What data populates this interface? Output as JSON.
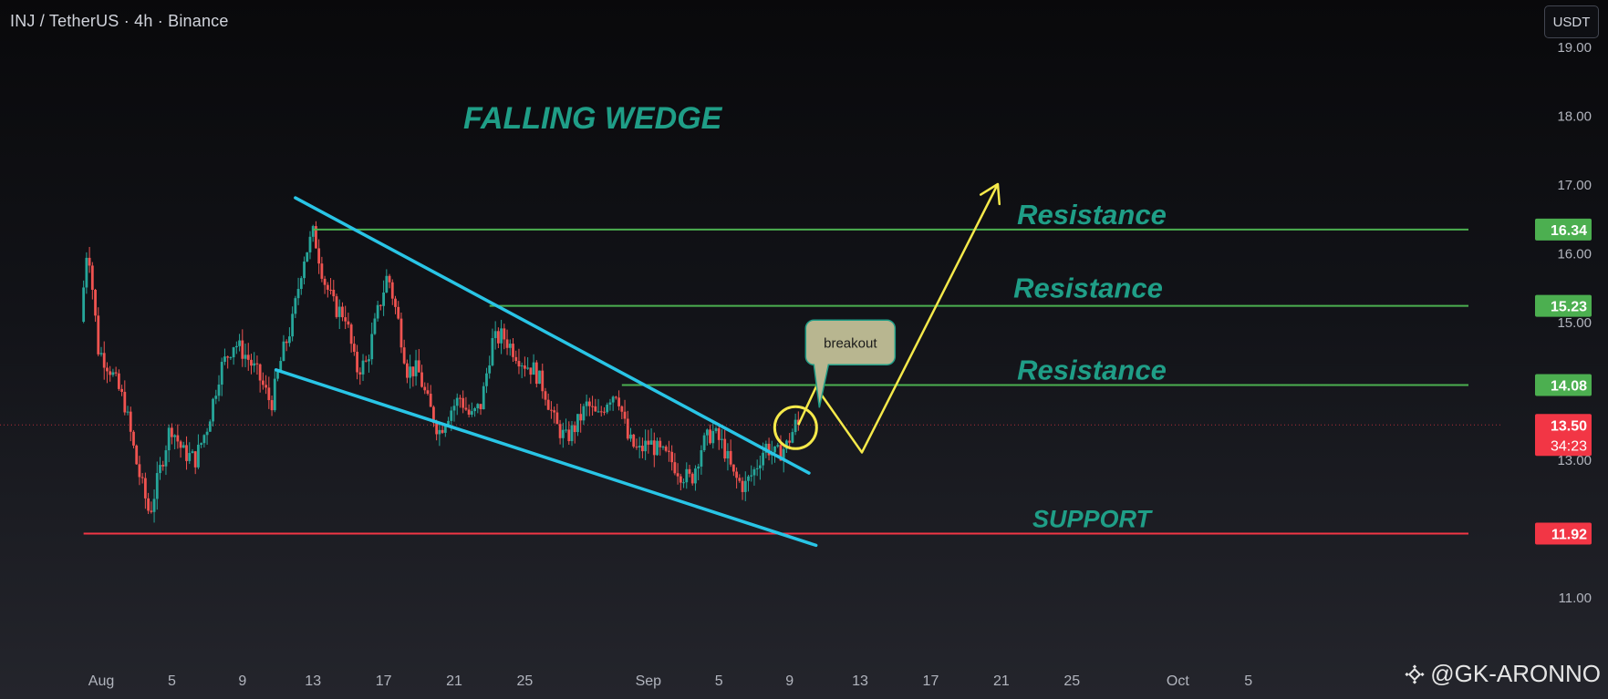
{
  "header": {
    "symbol_line": "INJ / TetherUS · 4h · Binance",
    "currency_button": "USDT"
  },
  "watermark": {
    "text": "@GK-ARONNO"
  },
  "chart_data": {
    "type": "candlestick",
    "title": "FALLING WEDGE",
    "symbol": "INJ / TetherUS",
    "interval": "4h",
    "exchange": "Binance",
    "yaxis": {
      "ticks": [
        11.0,
        12.0,
        13.0,
        14.0,
        15.0,
        16.0,
        17.0,
        18.0,
        19.0
      ],
      "tick_labels": [
        "11.00",
        "12.00",
        "13.00",
        "14.00",
        "15.00",
        "16.00",
        "17.00",
        "18.00",
        "19.00"
      ],
      "currency": "USDT"
    },
    "xaxis": {
      "tick_labels": [
        "Aug",
        "5",
        "9",
        "13",
        "17",
        "21",
        "25",
        "Sep",
        "5",
        "9",
        "13",
        "17",
        "21",
        "25",
        "Oct",
        "5"
      ],
      "tick_days": [
        0,
        4,
        8,
        12,
        16,
        20,
        24,
        31,
        35,
        39,
        43,
        47,
        51,
        55,
        61,
        65
      ]
    },
    "price_series": [
      {
        "d": -1,
        "p": 15.0
      },
      {
        "d": -0.6,
        "p": 16.2
      },
      {
        "d": 0,
        "p": 14.6
      },
      {
        "d": 0.7,
        "p": 14.3
      },
      {
        "d": 1.5,
        "p": 13.8
      },
      {
        "d": 2.2,
        "p": 12.9
      },
      {
        "d": 2.9,
        "p": 12.2
      },
      {
        "d": 3.5,
        "p": 12.85
      },
      {
        "d": 4.1,
        "p": 13.5
      },
      {
        "d": 4.8,
        "p": 13.1
      },
      {
        "d": 5.5,
        "p": 13.0
      },
      {
        "d": 6.2,
        "p": 13.5
      },
      {
        "d": 6.9,
        "p": 14.3
      },
      {
        "d": 7.7,
        "p": 14.7
      },
      {
        "d": 8.4,
        "p": 14.5
      },
      {
        "d": 9.1,
        "p": 14.2
      },
      {
        "d": 9.8,
        "p": 13.8
      },
      {
        "d": 10.4,
        "p": 14.5
      },
      {
        "d": 11.0,
        "p": 15.0
      },
      {
        "d": 11.6,
        "p": 15.9
      },
      {
        "d": 12.2,
        "p": 16.3
      },
      {
        "d": 12.8,
        "p": 15.6
      },
      {
        "d": 13.4,
        "p": 15.2
      },
      {
        "d": 14.0,
        "p": 15.1
      },
      {
        "d": 14.6,
        "p": 14.3
      },
      {
        "d": 15.2,
        "p": 14.4
      },
      {
        "d": 15.8,
        "p": 15.1
      },
      {
        "d": 16.4,
        "p": 15.7
      },
      {
        "d": 17.0,
        "p": 15.0
      },
      {
        "d": 17.5,
        "p": 14.3
      },
      {
        "d": 18.1,
        "p": 14.3
      },
      {
        "d": 18.7,
        "p": 13.8
      },
      {
        "d": 19.3,
        "p": 13.4
      },
      {
        "d": 19.9,
        "p": 13.7
      },
      {
        "d": 20.5,
        "p": 13.9
      },
      {
        "d": 21.1,
        "p": 13.6
      },
      {
        "d": 21.7,
        "p": 13.8
      },
      {
        "d": 22.3,
        "p": 14.7
      },
      {
        "d": 22.9,
        "p": 14.8
      },
      {
        "d": 23.5,
        "p": 14.6
      },
      {
        "d": 24.1,
        "p": 14.4
      },
      {
        "d": 24.7,
        "p": 14.3
      },
      {
        "d": 25.3,
        "p": 14.0
      },
      {
        "d": 25.9,
        "p": 13.5
      },
      {
        "d": 26.5,
        "p": 13.3
      },
      {
        "d": 27.1,
        "p": 13.5
      },
      {
        "d": 27.7,
        "p": 13.8
      },
      {
        "d": 28.3,
        "p": 13.6
      },
      {
        "d": 28.9,
        "p": 13.9
      },
      {
        "d": 29.4,
        "p": 14.0
      },
      {
        "d": 30.0,
        "p": 13.3
      },
      {
        "d": 30.6,
        "p": 13.1
      },
      {
        "d": 31.2,
        "p": 13.25
      },
      {
        "d": 31.8,
        "p": 13.1
      },
      {
        "d": 32.4,
        "p": 13.0
      },
      {
        "d": 33.0,
        "p": 12.8
      },
      {
        "d": 33.6,
        "p": 12.7
      },
      {
        "d": 34.2,
        "p": 13.2
      },
      {
        "d": 34.8,
        "p": 13.4
      },
      {
        "d": 35.4,
        "p": 13.2
      },
      {
        "d": 36.0,
        "p": 12.75
      },
      {
        "d": 36.6,
        "p": 12.6
      },
      {
        "d": 37.2,
        "p": 12.85
      },
      {
        "d": 37.8,
        "p": 13.2
      },
      {
        "d": 38.4,
        "p": 13.05
      },
      {
        "d": 39.0,
        "p": 13.2
      },
      {
        "d": 39.5,
        "p": 13.5
      }
    ],
    "projection_path": [
      {
        "d": 39.5,
        "p": 13.5
      },
      {
        "d": 40.5,
        "p": 14.05
      },
      {
        "d": 43.1,
        "p": 13.1
      },
      {
        "d": 50.8,
        "p": 17.0
      }
    ],
    "wedge_upper": [
      {
        "d": 11.0,
        "p": 16.8
      },
      {
        "d": 40.1,
        "p": 12.8
      }
    ],
    "wedge_lower": [
      {
        "d": 9.9,
        "p": 14.3
      },
      {
        "d": 40.5,
        "p": 11.75
      }
    ],
    "horizontal_levels": [
      {
        "name": "Resistance",
        "price": 16.34,
        "price_label": "16.34",
        "start_day": 12.0,
        "color": "#4caf50"
      },
      {
        "name": "Resistance",
        "price": 15.23,
        "price_label": "15.23",
        "start_day": 22.0,
        "color": "#4caf50"
      },
      {
        "name": "Resistance",
        "price": 14.08,
        "price_label": "14.08",
        "start_day": 29.5,
        "color": "#4caf50"
      },
      {
        "name": "SUPPORT",
        "price": 11.92,
        "price_label": "11.92",
        "start_day": -1.0,
        "color": "#f23645"
      }
    ],
    "current_price": {
      "price": 13.5,
      "label": "13.50",
      "countdown": "34:23",
      "color": "#f23645"
    },
    "annotations": [
      {
        "text": "FALLING WEDGE",
        "kind": "title"
      },
      {
        "text": "Resistance",
        "kind": "level_label",
        "level": 0
      },
      {
        "text": "Resistance",
        "kind": "level_label",
        "level": 1
      },
      {
        "text": "Resistance",
        "kind": "level_label",
        "level": 2
      },
      {
        "text": "SUPPORT",
        "kind": "level_label",
        "level": 3
      },
      {
        "text": "breakout",
        "kind": "callout",
        "day": 39.5,
        "price": 13.5
      }
    ],
    "colors": {
      "wedge": "#29c5e6",
      "projection": "#f5e94a",
      "resistance": "#4caf50",
      "support": "#f23645",
      "label_text": "#1f9e87",
      "callout_bg": "#b8b690",
      "callout_border": "#1f9e87",
      "candle_up": "#26a69a",
      "candle_down": "#ef5350"
    },
    "grid": false
  }
}
